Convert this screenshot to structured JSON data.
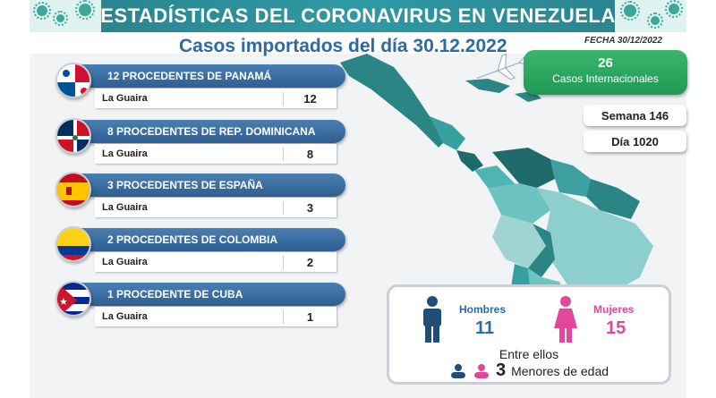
{
  "header": {
    "title": "ESTADÍSTICAS DEL CORONAVIRUS EN VENEZUELA",
    "subtitle": "Casos importados del día 30.12.2022",
    "date": "FECHA 30/12/2022"
  },
  "countries": [
    {
      "label": "12 PROCEDENTES DE PANAMÁ",
      "place": "La Guaira",
      "count": "12",
      "flag": "panama-flag-icon"
    },
    {
      "label": "8 PROCEDENTES DE REP. DOMINICANA",
      "place": "La Guaira",
      "count": "8",
      "flag": "dominican-republic-flag-icon"
    },
    {
      "label": "3 PROCEDENTES DE ESPAÑA",
      "place": "La Guaira",
      "count": "3",
      "flag": "spain-flag-icon"
    },
    {
      "label": "2 PROCEDENTES DE COLOMBIA",
      "place": "La Guaira",
      "count": "2",
      "flag": "colombia-flag-icon"
    },
    {
      "label": "1 PROCEDENTE DE CUBA",
      "place": "La Guaira",
      "count": "1",
      "flag": "cuba-flag-icon"
    }
  ],
  "summary": {
    "international_count": "26",
    "international_label": "Casos Internacionales",
    "week": "Semana 146",
    "day": "Día 1020"
  },
  "gender": {
    "men_label": "Hombres",
    "men_count": "11",
    "women_label": "Mujeres",
    "women_count": "15",
    "among_label": "Entre ellos",
    "minors_count": "3",
    "minors_label": "Menores de edad"
  },
  "colors": {
    "banner": "#2a7f8a",
    "country_header": "#2e5e92",
    "international": "#1f9a55",
    "men": "#2b6aa3",
    "women": "#e2479a",
    "map_dark": "#1f6b6b",
    "map_light": "#9fd4d3"
  }
}
